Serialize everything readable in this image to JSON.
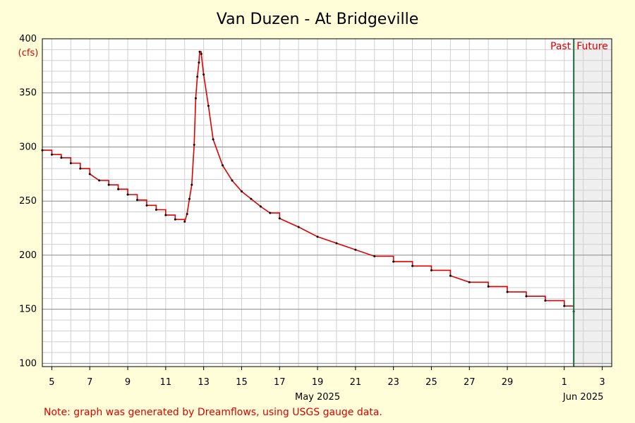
{
  "chart_data": {
    "type": "line",
    "title": "Van Duzen - At Bridgeville",
    "y_unit": "(cfs)",
    "ylim": [
      97,
      400
    ],
    "y_ticks": [
      100,
      150,
      200,
      250,
      300,
      350,
      400
    ],
    "x_start": "2025-05-04T12:00",
    "x_end": "2025-06-03T12:00",
    "x_tick_labels": [
      {
        "date": "2025-05-05",
        "label": "5"
      },
      {
        "date": "2025-05-07",
        "label": "7"
      },
      {
        "date": "2025-05-09",
        "label": "9"
      },
      {
        "date": "2025-05-11",
        "label": "11"
      },
      {
        "date": "2025-05-13",
        "label": "13"
      },
      {
        "date": "2025-05-15",
        "label": "15"
      },
      {
        "date": "2025-05-17",
        "label": "17"
      },
      {
        "date": "2025-05-19",
        "label": "19"
      },
      {
        "date": "2025-05-21",
        "label": "21"
      },
      {
        "date": "2025-05-23",
        "label": "23"
      },
      {
        "date": "2025-05-25",
        "label": "25"
      },
      {
        "date": "2025-05-27",
        "label": "27"
      },
      {
        "date": "2025-05-29",
        "label": "29"
      },
      {
        "date": "2025-06-01",
        "label": "1"
      },
      {
        "date": "2025-06-03",
        "label": "3"
      }
    ],
    "month_labels": [
      {
        "date": "2025-05-19",
        "label": "May 2025"
      },
      {
        "date": "2025-06-02",
        "label": "Jun 2025"
      }
    ],
    "now": "2025-06-01T12:00",
    "past_label": "Past",
    "future_label": "Future",
    "grid": true,
    "series": [
      {
        "color": "#e00000",
        "points": [
          [
            "2025-05-04T12:00",
            297
          ],
          [
            "2025-05-05T00:00",
            293
          ],
          [
            "2025-05-05T12:00",
            290
          ],
          [
            "2025-05-06T00:00",
            285
          ],
          [
            "2025-05-06T12:00",
            280
          ],
          [
            "2025-05-07T00:00",
            275
          ],
          [
            "2025-05-07T12:00",
            269
          ],
          [
            "2025-05-08T00:00",
            265
          ],
          [
            "2025-05-08T12:00",
            261
          ],
          [
            "2025-05-09T00:00",
            256
          ],
          [
            "2025-05-09T12:00",
            251
          ],
          [
            "2025-05-10T00:00",
            246
          ],
          [
            "2025-05-10T12:00",
            242
          ],
          [
            "2025-05-11T00:00",
            237
          ],
          [
            "2025-05-11T12:00",
            233
          ],
          [
            "2025-05-12T00:00",
            231
          ],
          [
            "2025-05-12T03:00",
            238
          ],
          [
            "2025-05-12T06:00",
            252
          ],
          [
            "2025-05-12T09:00",
            265
          ],
          [
            "2025-05-12T12:00",
            302
          ],
          [
            "2025-05-12T14:00",
            345
          ],
          [
            "2025-05-12T16:00",
            365
          ],
          [
            "2025-05-12T18:00",
            378
          ],
          [
            "2025-05-12T19:00",
            388
          ],
          [
            "2025-05-12T21:00",
            386
          ],
          [
            "2025-05-13T00:00",
            367
          ],
          [
            "2025-05-13T06:00",
            338
          ],
          [
            "2025-05-13T12:00",
            307
          ],
          [
            "2025-05-14T00:00",
            283
          ],
          [
            "2025-05-14T12:00",
            269
          ],
          [
            "2025-05-15T00:00",
            259
          ],
          [
            "2025-05-15T12:00",
            252
          ],
          [
            "2025-05-16T00:00",
            245
          ],
          [
            "2025-05-16T12:00",
            239
          ],
          [
            "2025-05-17T00:00",
            234
          ],
          [
            "2025-05-18T00:00",
            226
          ],
          [
            "2025-05-19T00:00",
            217
          ],
          [
            "2025-05-20T00:00",
            211
          ],
          [
            "2025-05-21T00:00",
            205
          ],
          [
            "2025-05-22T00:00",
            199
          ],
          [
            "2025-05-23T00:00",
            194
          ],
          [
            "2025-05-24T00:00",
            190
          ],
          [
            "2025-05-25T00:00",
            186
          ],
          [
            "2025-05-26T00:00",
            181
          ],
          [
            "2025-05-27T00:00",
            175
          ],
          [
            "2025-05-28T00:00",
            171
          ],
          [
            "2025-05-29T00:00",
            166
          ],
          [
            "2025-05-30T00:00",
            162
          ],
          [
            "2025-05-31T00:00",
            158
          ],
          [
            "2025-06-01T00:00",
            153
          ],
          [
            "2025-06-01T12:00",
            148
          ]
        ]
      }
    ]
  },
  "note": "Note: graph was generated by Dreamflows, using USGS gauge data."
}
